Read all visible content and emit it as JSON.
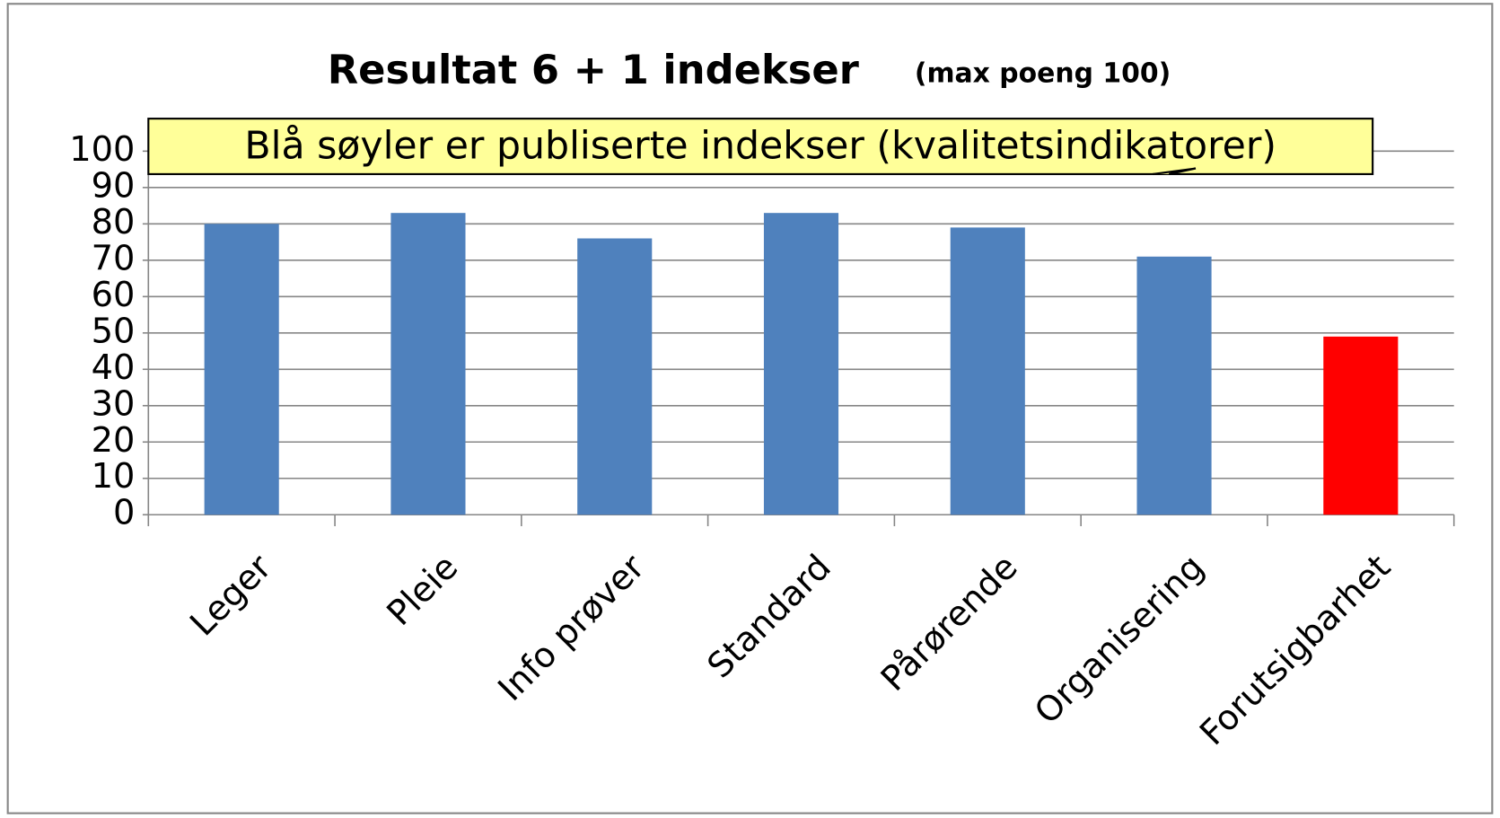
{
  "chart_data": {
    "type": "bar",
    "title": "Resultat 6 + 1 indekser",
    "subtitle": "(max poeng 100)",
    "annotation": "Blå søyler er publiserte indekser (kvalitetsindikatorer)",
    "categories": [
      "Leger",
      "Pleie",
      "Info prøver",
      "Standard",
      "Pårørende",
      "Organisering",
      "Forutsigbarhet"
    ],
    "values": [
      80,
      83,
      76,
      83,
      79,
      71,
      49
    ],
    "colors": [
      "#4f81bd",
      "#4f81bd",
      "#4f81bd",
      "#4f81bd",
      "#4f81bd",
      "#4f81bd",
      "#ff0000"
    ],
    "ylim": [
      0,
      100
    ],
    "yticks": [
      0,
      10,
      20,
      30,
      40,
      50,
      60,
      70,
      80,
      90,
      100
    ],
    "grid": true
  }
}
